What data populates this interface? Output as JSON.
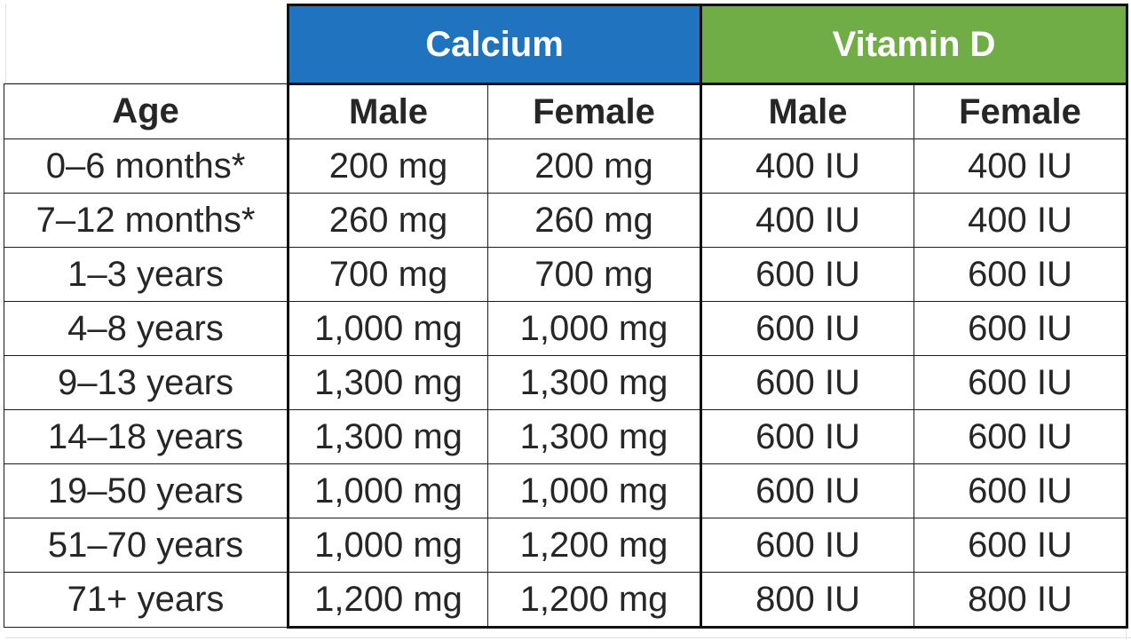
{
  "groups": {
    "calcium": "Calcium",
    "vitamin_d": "Vitamin D"
  },
  "headers": {
    "age": "Age",
    "calcium_male": "Male",
    "calcium_female": "Female",
    "vitd_male": "Male",
    "vitd_female": "Female"
  },
  "colors": {
    "calcium_header": "#1f73bf",
    "vitamin_d_header": "#70ad47"
  },
  "rows": [
    {
      "age": "0–6 months*",
      "ca_m": "200 mg",
      "ca_f": "200 mg",
      "vd_m": "400 IU",
      "vd_f": "400 IU"
    },
    {
      "age": "7–12 months*",
      "ca_m": "260 mg",
      "ca_f": "260 mg",
      "vd_m": "400 IU",
      "vd_f": "400 IU"
    },
    {
      "age": "1–3 years",
      "ca_m": "700 mg",
      "ca_f": "700 mg",
      "vd_m": "600 IU",
      "vd_f": "600 IU"
    },
    {
      "age": "4–8 years",
      "ca_m": "1,000 mg",
      "ca_f": "1,000 mg",
      "vd_m": "600 IU",
      "vd_f": "600 IU"
    },
    {
      "age": "9–13 years",
      "ca_m": "1,300 mg",
      "ca_f": "1,300 mg",
      "vd_m": "600 IU",
      "vd_f": "600 IU"
    },
    {
      "age": "14–18 years",
      "ca_m": "1,300 mg",
      "ca_f": "1,300 mg",
      "vd_m": "600 IU",
      "vd_f": "600 IU"
    },
    {
      "age": "19–50 years",
      "ca_m": "1,000 mg",
      "ca_f": "1,000 mg",
      "vd_m": "600 IU",
      "vd_f": "600 IU"
    },
    {
      "age": "51–70 years",
      "ca_m": "1,000 mg",
      "ca_f": "1,200 mg",
      "vd_m": "600 IU",
      "vd_f": "600 IU"
    },
    {
      "age": "71+ years",
      "ca_m": "1,200 mg",
      "ca_f": "1,200 mg",
      "vd_m": "800 IU",
      "vd_f": "800 IU"
    }
  ]
}
